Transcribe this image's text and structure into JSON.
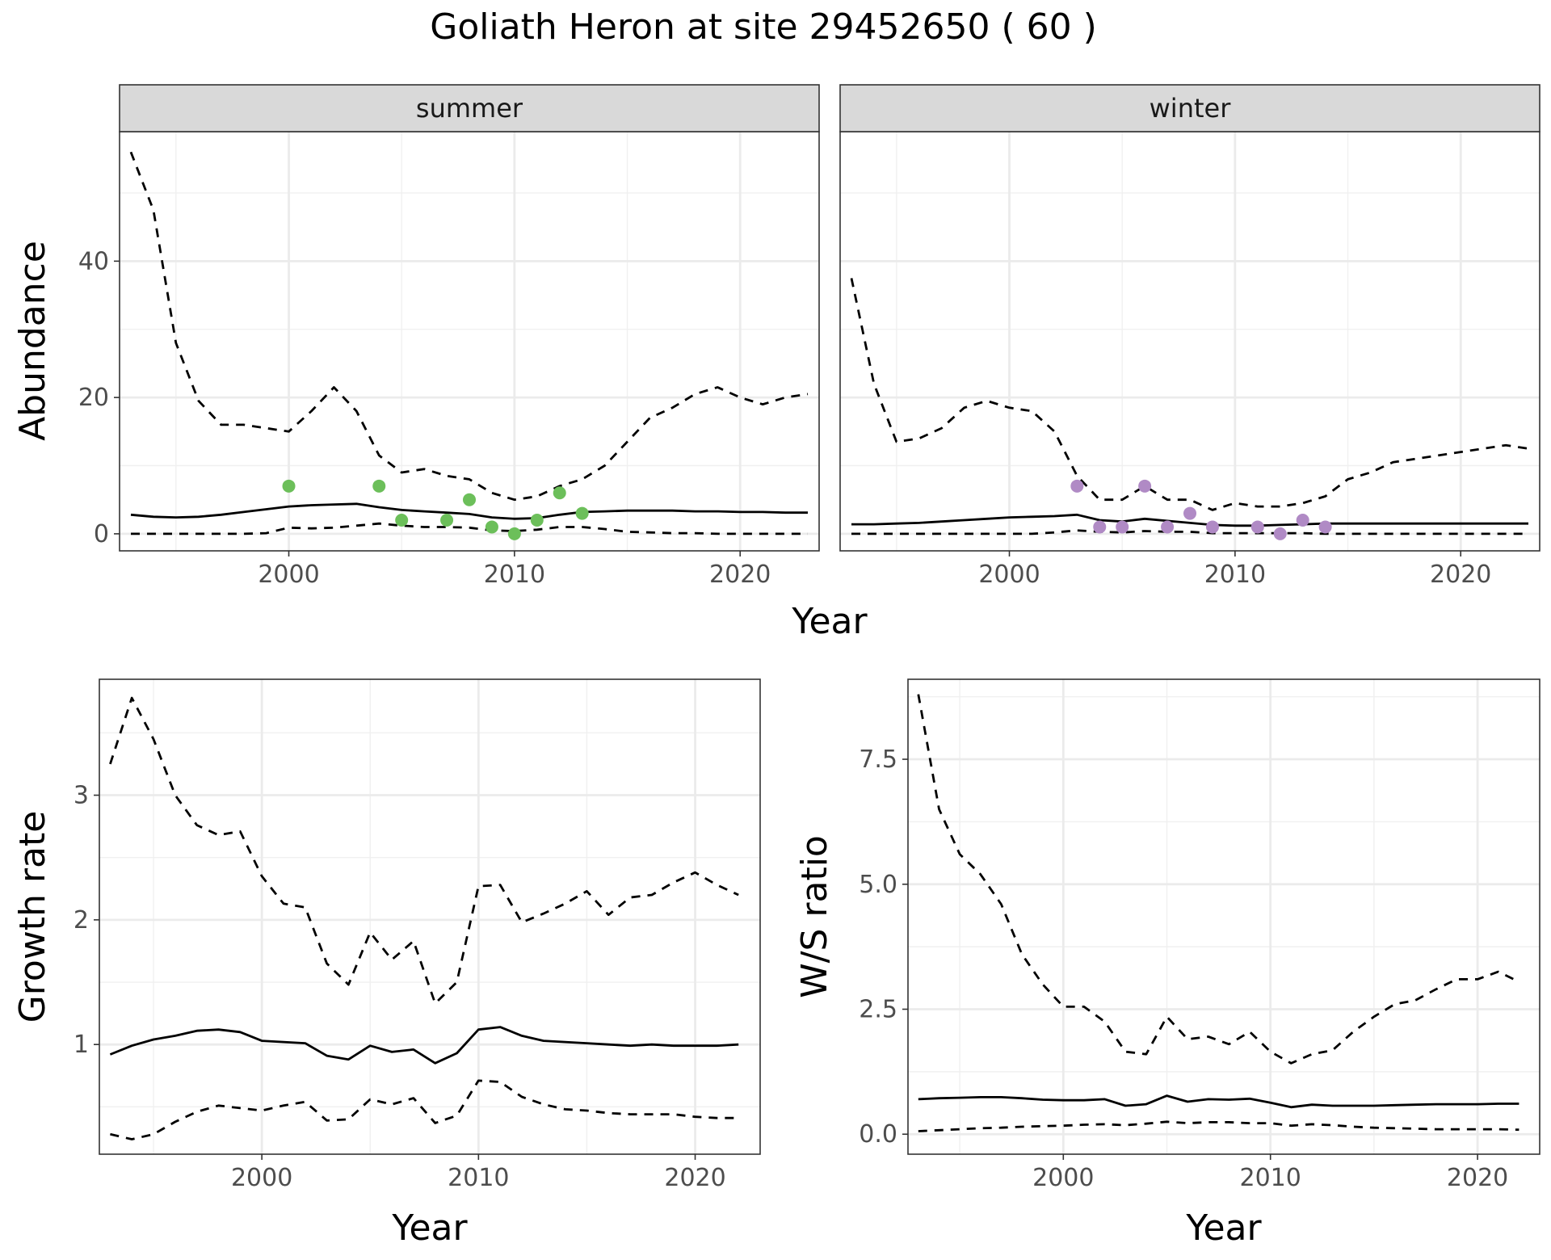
{
  "figure_title": "Goliath Heron at site 29452650 ( 60 )",
  "chart_data": [
    {
      "id": "abundance",
      "type": "line",
      "facets": [
        "summer",
        "winter"
      ],
      "xlabel": "Year",
      "ylabel": "Abundance",
      "xlim": [
        1992.5,
        2023.5
      ],
      "ylim": [
        -2.5,
        59
      ],
      "xticks": [
        2000,
        2010,
        2020
      ],
      "yticks": [
        0,
        20,
        40
      ],
      "grid": true,
      "panels": [
        {
          "facet": "summer",
          "point_color": "#6cbf5a",
          "series": [
            {
              "style": "dashed",
              "x": [
                1993,
                1994,
                1995,
                1996,
                1997,
                1998,
                1999,
                2000,
                2001,
                2002,
                2003,
                2004,
                2005,
                2006,
                2007,
                2008,
                2009,
                2010,
                2011,
                2012,
                2013,
                2014,
                2015,
                2016,
                2017,
                2018,
                2019,
                2020,
                2021,
                2022,
                2023
              ],
              "y": [
                56,
                47.5,
                28,
                19.5,
                16,
                16,
                15.5,
                15,
                18,
                21.5,
                18,
                11.5,
                9,
                9.5,
                8.5,
                8,
                6,
                5,
                5.5,
                7,
                8,
                10,
                13.5,
                17,
                18.5,
                20.5,
                21.5,
                20,
                19,
                20,
                20.5
              ]
            },
            {
              "style": "solid",
              "x": [
                1993,
                1994,
                1995,
                1996,
                1997,
                1998,
                1999,
                2000,
                2001,
                2002,
                2003,
                2004,
                2005,
                2006,
                2007,
                2008,
                2009,
                2010,
                2011,
                2012,
                2013,
                2014,
                2015,
                2016,
                2017,
                2018,
                2019,
                2020,
                2021,
                2022,
                2023
              ],
              "y": [
                2.8,
                2.5,
                2.4,
                2.5,
                2.8,
                3.2,
                3.6,
                4.0,
                4.2,
                4.3,
                4.4,
                3.9,
                3.5,
                3.3,
                3.1,
                2.9,
                2.4,
                2.2,
                2.3,
                2.8,
                3.2,
                3.3,
                3.4,
                3.4,
                3.4,
                3.3,
                3.3,
                3.2,
                3.2,
                3.1,
                3.1
              ]
            },
            {
              "style": "dashed",
              "x": [
                1993,
                1994,
                1995,
                1996,
                1997,
                1998,
                1999,
                2000,
                2001,
                2002,
                2003,
                2004,
                2005,
                2006,
                2007,
                2008,
                2009,
                2010,
                2011,
                2012,
                2013,
                2014,
                2015,
                2016,
                2017,
                2018,
                2019,
                2020,
                2021,
                2022,
                2023
              ],
              "y": [
                0,
                0,
                0,
                0,
                0,
                0,
                0.1,
                0.9,
                0.8,
                0.9,
                1.2,
                1.5,
                1.2,
                1.0,
                1.0,
                0.9,
                0.5,
                0.4,
                0.6,
                1.0,
                1.0,
                0.7,
                0.3,
                0.2,
                0.1,
                0.1,
                0,
                0,
                0,
                0,
                0
              ]
            }
          ],
          "points": {
            "x": [
              2000,
              2004,
              2005,
              2007,
              2008,
              2009,
              2010,
              2011,
              2012,
              2013
            ],
            "y": [
              7,
              7,
              2,
              2,
              5,
              1,
              0,
              2,
              6,
              3
            ]
          }
        },
        {
          "facet": "winter",
          "point_color": "#b08ac5",
          "series": [
            {
              "style": "dashed",
              "x": [
                1993,
                1994,
                1995,
                1996,
                1997,
                1998,
                1999,
                2000,
                2001,
                2002,
                2003,
                2004,
                2005,
                2006,
                2007,
                2008,
                2009,
                2010,
                2011,
                2012,
                2013,
                2014,
                2015,
                2016,
                2017,
                2018,
                2019,
                2020,
                2021,
                2022,
                2023
              ],
              "y": [
                37.5,
                22,
                13.5,
                14,
                15.5,
                18.5,
                19.5,
                18.5,
                18,
                15,
                8.5,
                5,
                5,
                7,
                5,
                5,
                3.5,
                4.5,
                4,
                4,
                4.5,
                5.5,
                8,
                9,
                10.5,
                11,
                11.5,
                12,
                12.5,
                13,
                12.5
              ]
            },
            {
              "style": "solid",
              "x": [
                1993,
                1994,
                1995,
                1996,
                1997,
                1998,
                1999,
                2000,
                2001,
                2002,
                2003,
                2004,
                2005,
                2006,
                2007,
                2008,
                2009,
                2010,
                2011,
                2012,
                2013,
                2014,
                2015,
                2016,
                2017,
                2018,
                2019,
                2020,
                2021,
                2022,
                2023
              ],
              "y": [
                1.4,
                1.4,
                1.5,
                1.6,
                1.8,
                2.0,
                2.2,
                2.4,
                2.5,
                2.6,
                2.8,
                2.0,
                1.8,
                2.2,
                1.9,
                1.6,
                1.3,
                1.2,
                1.2,
                1.3,
                1.4,
                1.5,
                1.5,
                1.5,
                1.5,
                1.5,
                1.5,
                1.5,
                1.5,
                1.5,
                1.5
              ]
            },
            {
              "style": "dashed",
              "x": [
                1993,
                1994,
                1995,
                1996,
                1997,
                1998,
                1999,
                2000,
                2001,
                2002,
                2003,
                2004,
                2005,
                2006,
                2007,
                2008,
                2009,
                2010,
                2011,
                2012,
                2013,
                2014,
                2015,
                2016,
                2017,
                2018,
                2019,
                2020,
                2021,
                2022,
                2023
              ],
              "y": [
                0,
                0,
                0,
                0,
                0,
                0,
                0,
                0,
                0,
                0.2,
                0.5,
                0.3,
                0.2,
                0.4,
                0.3,
                0.3,
                0.1,
                0.1,
                0.1,
                0.1,
                0.1,
                0,
                0,
                0,
                0,
                0,
                0,
                0,
                0,
                0,
                0
              ]
            }
          ],
          "points": {
            "x": [
              2003,
              2004,
              2005,
              2006,
              2007,
              2008,
              2009,
              2011,
              2012,
              2013,
              2014
            ],
            "y": [
              7,
              1,
              1,
              7,
              1,
              3,
              1,
              1,
              0,
              2,
              1
            ]
          }
        }
      ]
    },
    {
      "id": "growth",
      "type": "line",
      "xlabel": "Year",
      "ylabel": "Growth rate",
      "xlim": [
        1992.5,
        2023
      ],
      "ylim": [
        0.12,
        3.93
      ],
      "xticks": [
        2000,
        2010,
        2020
      ],
      "yticks": [
        1,
        2,
        3
      ],
      "grid": true,
      "series": [
        {
          "style": "dashed",
          "x": [
            1993,
            1994,
            1995,
            1996,
            1997,
            1998,
            1999,
            2000,
            2001,
            2002,
            2003,
            2004,
            2005,
            2006,
            2007,
            2008,
            2009,
            2010,
            2011,
            2012,
            2013,
            2014,
            2015,
            2016,
            2017,
            2018,
            2019,
            2020,
            2021,
            2022
          ],
          "y": [
            3.25,
            3.78,
            3.45,
            3.0,
            2.76,
            2.68,
            2.71,
            2.35,
            2.13,
            2.1,
            1.65,
            1.48,
            1.9,
            1.68,
            1.83,
            1.33,
            1.5,
            2.27,
            2.28,
            1.98,
            2.05,
            2.13,
            2.23,
            2.04,
            2.18,
            2.2,
            2.3,
            2.38,
            2.28,
            2.2
          ]
        },
        {
          "style": "solid",
          "x": [
            1993,
            1994,
            1995,
            1996,
            1997,
            1998,
            1999,
            2000,
            2001,
            2002,
            2003,
            2004,
            2005,
            2006,
            2007,
            2008,
            2009,
            2010,
            2011,
            2012,
            2013,
            2014,
            2015,
            2016,
            2017,
            2018,
            2019,
            2020,
            2021,
            2022
          ],
          "y": [
            0.92,
            0.99,
            1.04,
            1.07,
            1.11,
            1.12,
            1.1,
            1.03,
            1.02,
            1.01,
            0.91,
            0.88,
            0.99,
            0.94,
            0.96,
            0.85,
            0.93,
            1.12,
            1.14,
            1.07,
            1.03,
            1.02,
            1.01,
            1.0,
            0.99,
            1.0,
            0.99,
            0.99,
            0.99,
            1.0
          ]
        },
        {
          "style": "dashed",
          "x": [
            1993,
            1994,
            1995,
            1996,
            1997,
            1998,
            1999,
            2000,
            2001,
            2002,
            2003,
            2004,
            2005,
            2006,
            2007,
            2008,
            2009,
            2010,
            2011,
            2012,
            2013,
            2014,
            2015,
            2016,
            2017,
            2018,
            2019,
            2020,
            2021,
            2022
          ],
          "y": [
            0.28,
            0.24,
            0.28,
            0.38,
            0.46,
            0.51,
            0.49,
            0.47,
            0.51,
            0.54,
            0.39,
            0.4,
            0.56,
            0.52,
            0.57,
            0.37,
            0.43,
            0.71,
            0.7,
            0.58,
            0.52,
            0.48,
            0.47,
            0.45,
            0.44,
            0.44,
            0.44,
            0.42,
            0.41,
            0.41
          ]
        }
      ]
    },
    {
      "id": "ws_ratio",
      "type": "line",
      "xlabel": "Year",
      "ylabel": "W/S ratio",
      "xlim": [
        1992.5,
        2023
      ],
      "ylim": [
        -0.4,
        9.1
      ],
      "xticks": [
        2000,
        2010,
        2020
      ],
      "yticks": [
        0.0,
        2.5,
        5.0,
        7.5
      ],
      "ytick_labels": [
        "0.0",
        "2.5",
        "5.0",
        "7.5"
      ],
      "grid": true,
      "series": [
        {
          "style": "dashed",
          "x": [
            1993,
            1994,
            1995,
            1996,
            1997,
            1998,
            1999,
            2000,
            2001,
            2002,
            2003,
            2004,
            2005,
            2006,
            2007,
            2008,
            2009,
            2010,
            2011,
            2012,
            2013,
            2014,
            2015,
            2016,
            2017,
            2018,
            2019,
            2020,
            2021,
            2022
          ],
          "y": [
            8.8,
            6.5,
            5.6,
            5.2,
            4.6,
            3.6,
            3.0,
            2.55,
            2.55,
            2.25,
            1.65,
            1.6,
            2.35,
            1.9,
            1.95,
            1.8,
            2.05,
            1.65,
            1.42,
            1.6,
            1.68,
            2.05,
            2.35,
            2.6,
            2.68,
            2.9,
            3.1,
            3.1,
            3.25,
            3.05
          ]
        },
        {
          "style": "solid",
          "x": [
            1993,
            1994,
            1995,
            1996,
            1997,
            1998,
            1999,
            2000,
            2001,
            2002,
            2003,
            2004,
            2005,
            2006,
            2007,
            2008,
            2009,
            2010,
            2011,
            2012,
            2013,
            2014,
            2015,
            2016,
            2017,
            2018,
            2019,
            2020,
            2021,
            2022
          ],
          "y": [
            0.7,
            0.72,
            0.73,
            0.74,
            0.74,
            0.72,
            0.69,
            0.68,
            0.68,
            0.7,
            0.57,
            0.6,
            0.77,
            0.65,
            0.7,
            0.69,
            0.71,
            0.63,
            0.54,
            0.59,
            0.57,
            0.57,
            0.57,
            0.58,
            0.59,
            0.6,
            0.6,
            0.6,
            0.61,
            0.61
          ]
        },
        {
          "style": "dashed",
          "x": [
            1993,
            1994,
            1995,
            1996,
            1997,
            1998,
            1999,
            2000,
            2001,
            2002,
            2003,
            2004,
            2005,
            2006,
            2007,
            2008,
            2009,
            2010,
            2011,
            2012,
            2013,
            2014,
            2015,
            2016,
            2017,
            2018,
            2019,
            2020,
            2021,
            2022
          ],
          "y": [
            0.06,
            0.08,
            0.1,
            0.12,
            0.13,
            0.15,
            0.16,
            0.17,
            0.19,
            0.2,
            0.18,
            0.21,
            0.25,
            0.22,
            0.24,
            0.24,
            0.22,
            0.22,
            0.17,
            0.2,
            0.18,
            0.15,
            0.13,
            0.12,
            0.11,
            0.1,
            0.1,
            0.1,
            0.1,
            0.09
          ]
        }
      ]
    }
  ]
}
